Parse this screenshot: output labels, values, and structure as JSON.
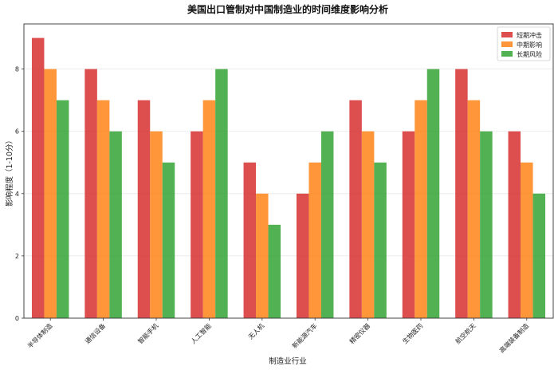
{
  "chart_data": {
    "type": "bar",
    "title": "美国出口管制对中国制造业的时间维度影响分析",
    "xlabel": "制造业行业",
    "ylabel": "影响程度（1-10分）",
    "ylim": [
      0,
      9.45
    ],
    "yticks": [
      0,
      2,
      4,
      6,
      8
    ],
    "grid": true,
    "legend_position": "top-right",
    "categories": [
      "半导体制造",
      "通信设备",
      "智能手机",
      "人工智能",
      "无人机",
      "新能源汽车",
      "精密仪器",
      "生物医药",
      "航空航天",
      "高端装备制造"
    ],
    "series": [
      {
        "name": "短期冲击",
        "color": "#d62728",
        "values": [
          9,
          8,
          7,
          6,
          5,
          4,
          7,
          6,
          8,
          6
        ]
      },
      {
        "name": "中期影响",
        "color": "#ff7f0e",
        "values": [
          8,
          7,
          6,
          7,
          4,
          5,
          6,
          7,
          7,
          5
        ]
      },
      {
        "name": "长期风险",
        "color": "#2ca02c",
        "values": [
          7,
          6,
          5,
          8,
          3,
          6,
          5,
          8,
          6,
          4
        ]
      }
    ]
  }
}
